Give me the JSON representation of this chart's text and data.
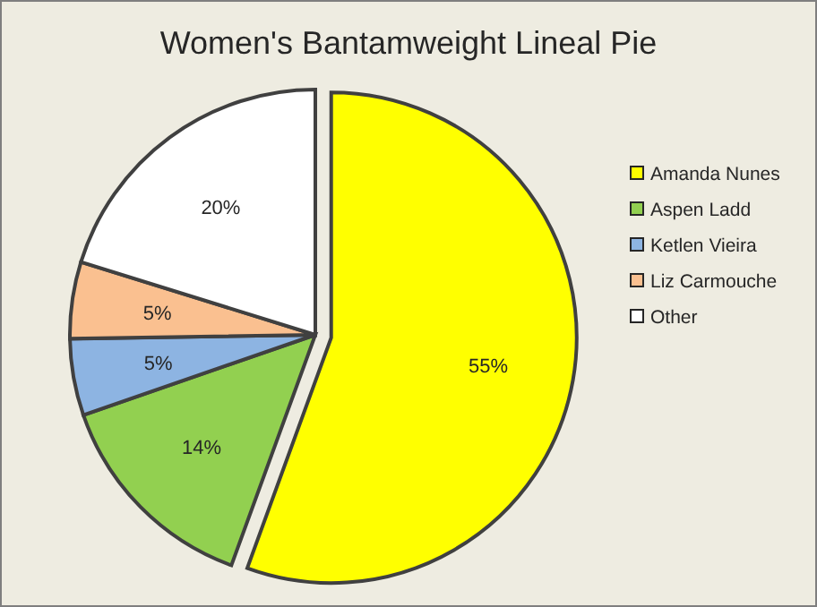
{
  "chart_data": {
    "type": "pie",
    "title": "Women's Bantamweight Lineal Pie",
    "categories": [
      "Amanda Nunes",
      "Aspen Ladd",
      "Ketlen Vieira",
      "Liz Carmouche",
      "Other"
    ],
    "values": [
      55,
      14,
      5,
      5,
      20
    ],
    "colors": [
      "#ffff00",
      "#92d050",
      "#8db4e2",
      "#fac090",
      "#ffffff"
    ],
    "value_labels": [
      "55%",
      "14%",
      "5%",
      "5%",
      "20%"
    ],
    "legend": "right"
  }
}
